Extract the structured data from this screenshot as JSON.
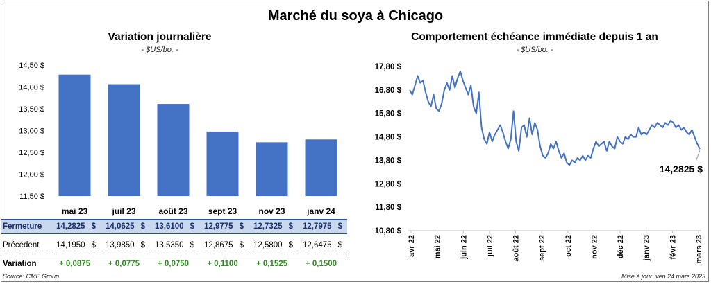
{
  "title": "Marché du soya à Chicago",
  "left_panel": {
    "title": "Variation journalière",
    "unit": "- $US/bo. -"
  },
  "right_panel": {
    "title": "Comportement échéance immédiate depuis 1 an",
    "unit": "- $US/bo. -",
    "last_value_label": "14,2825 $"
  },
  "table": {
    "rows": [
      {
        "label": "Fermeture",
        "values": [
          "14,2825",
          "14,0625",
          "13,6100",
          "12,9775",
          "12,7325",
          "12,7975"
        ],
        "suffix": "$"
      },
      {
        "label": "Précédent",
        "values": [
          "14,1950",
          "13,9850",
          "13,5350",
          "12,8675",
          "12,5800",
          "12,6475"
        ],
        "suffix": "$"
      },
      {
        "label": "Variation",
        "values": [
          "+ 0,0875",
          "+ 0,0775",
          "+ 0,0750",
          "+ 0,1100",
          "+ 0,1525",
          "+ 0,1500"
        ],
        "suffix": ""
      }
    ]
  },
  "footer": {
    "source": "Source: CME Group",
    "updated": "Mise à jour: ven 24 mars 2023"
  },
  "colors": {
    "bar": "#4472c4",
    "line": "#4472c4",
    "positive": "#2e8b1e",
    "highlight_row": "#c9d7ef"
  },
  "chart_data": [
    {
      "type": "bar",
      "title": "Variation journalière",
      "categories": [
        "mai 23",
        "juil 23",
        "août 23",
        "sept 23",
        "nov 23",
        "janv 24"
      ],
      "values": [
        14.2825,
        14.0625,
        13.61,
        12.9775,
        12.7325,
        12.7975
      ],
      "ylim": [
        11.5,
        14.5
      ],
      "yticks": [
        11.5,
        12.0,
        12.5,
        13.0,
        13.5,
        14.0,
        14.5
      ],
      "ytick_labels": [
        "11,50 $",
        "12,00 $",
        "12,50 $",
        "13,00 $",
        "13,50 $",
        "14,00 $",
        "14,50 $"
      ],
      "grid": false
    },
    {
      "type": "line",
      "title": "Comportement échéance immédiate depuis 1 an",
      "ylim": [
        10.8,
        17.8
      ],
      "yticks": [
        10.8,
        11.8,
        12.8,
        13.8,
        14.8,
        15.8,
        16.8,
        17.8
      ],
      "ytick_labels": [
        "10,80 $",
        "11,80 $",
        "12,80 $",
        "13,80 $",
        "14,80 $",
        "15,80 $",
        "16,80 $",
        "17,80 $"
      ],
      "xtick_labels": [
        "avr 22",
        "mai 22",
        "juin 22",
        "juil 22",
        "août 22",
        "sept 22",
        "oct 22",
        "nov 22",
        "déc 22",
        "janv 23",
        "févr 23",
        "mars 23"
      ],
      "values": [
        16.8,
        16.6,
        17.0,
        17.4,
        17.1,
        17.2,
        16.7,
        16.3,
        16.1,
        16.6,
        16.0,
        15.9,
        16.2,
        16.8,
        17.1,
        16.8,
        17.4,
        16.9,
        17.3,
        17.6,
        17.2,
        16.9,
        16.6,
        17.0,
        16.1,
        15.8,
        16.7,
        15.2,
        14.7,
        14.5,
        15.0,
        14.6,
        14.9,
        15.1,
        15.3,
        15.0,
        14.6,
        14.3,
        14.7,
        15.9,
        14.6,
        14.2,
        15.2,
        15.3,
        14.8,
        15.6,
        14.9,
        15.4,
        15.1,
        14.4,
        14.0,
        13.9,
        14.1,
        14.5,
        14.3,
        14.6,
        14.2,
        13.9,
        14.1,
        13.7,
        13.6,
        13.8,
        13.7,
        13.9,
        13.8,
        14.0,
        13.8,
        14.0,
        13.9,
        14.3,
        14.6,
        14.4,
        14.5,
        14.6,
        14.2,
        14.6,
        14.4,
        14.3,
        14.8,
        14.6,
        14.5,
        14.8,
        14.7,
        14.9,
        14.8,
        14.8,
        15.2,
        14.9,
        15.0,
        14.9,
        15.1,
        15.3,
        15.2,
        15.4,
        15.3,
        15.2,
        15.4,
        15.3,
        15.5,
        15.4,
        15.2,
        15.3,
        15.1,
        15.2,
        15.0,
        14.9,
        15.1,
        14.8,
        14.5,
        14.2825
      ],
      "last_value": 14.2825,
      "grid": false
    }
  ]
}
